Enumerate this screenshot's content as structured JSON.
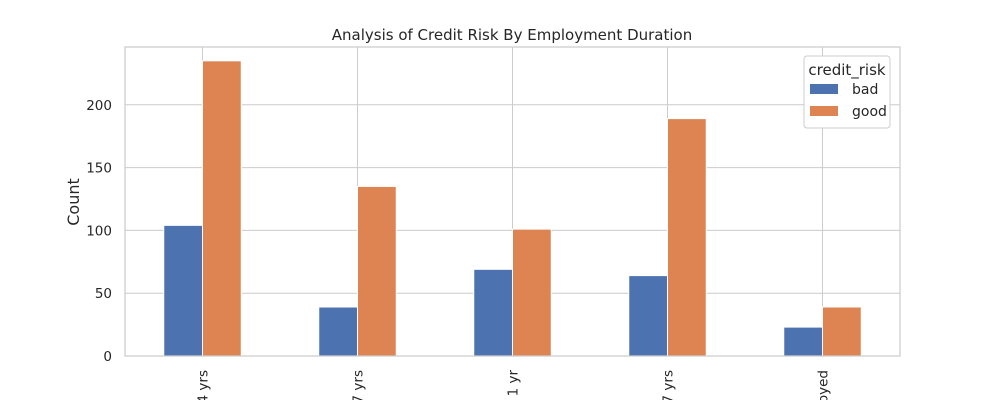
{
  "chart_data": {
    "type": "bar",
    "title": "Analysis of Credit Risk By Employment Duration",
    "xlabel": "",
    "ylabel": "Count",
    "categories": [
      "4 yrs",
      "7 yrs",
      "1 yr",
      "7 yrs",
      "oyed"
    ],
    "series": [
      {
        "name": "bad",
        "values": [
          104,
          39,
          69,
          64,
          23
        ],
        "color": "#4c72b0"
      },
      {
        "name": "good",
        "values": [
          235,
          135,
          101,
          189,
          39
        ],
        "color": "#dd8452"
      }
    ],
    "ylim": [
      0,
      246
    ],
    "yticks": [
      0,
      50,
      100,
      150,
      200
    ],
    "grid": true,
    "legend": {
      "title": "credit_risk",
      "placement": "top-right"
    }
  }
}
